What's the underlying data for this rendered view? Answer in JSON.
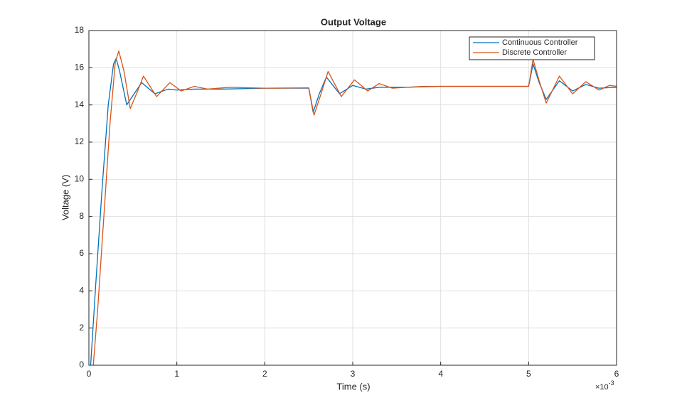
{
  "chart_data": {
    "type": "line",
    "title": "Output Voltage",
    "x_label": "Time (s)",
    "y_label": "Voltage (V)",
    "x_exponent_base": "×10",
    "x_exponent": "-3",
    "xlim": [
      0,
      6
    ],
    "xticks": [
      0,
      1,
      2,
      3,
      4,
      5,
      6
    ],
    "ylim": [
      0,
      18
    ],
    "yticks": [
      0,
      2,
      4,
      6,
      8,
      10,
      12,
      14,
      16,
      18
    ],
    "grid": true,
    "legend": "top-right",
    "series": [
      {
        "name": "Continuous Controller",
        "color": "#0072BD",
        "x": [
          0.02,
          0.08,
          0.15,
          0.22,
          0.28,
          0.31,
          0.35,
          0.43,
          0.5,
          0.6,
          0.75,
          0.9,
          1.0,
          1.2,
          1.5,
          2.0,
          2.49,
          2.5,
          2.55,
          2.62,
          2.7,
          2.85,
          3.0,
          3.15,
          3.3,
          3.6,
          4.0,
          4.5,
          4.99,
          5.0,
          5.05,
          5.12,
          5.2,
          5.35,
          5.5,
          5.65,
          5.8,
          6.0
        ],
        "values": [
          0,
          4.5,
          9.5,
          14,
          16.2,
          16.5,
          15.8,
          14.0,
          14.5,
          15.2,
          14.6,
          14.85,
          14.8,
          14.85,
          14.85,
          14.9,
          14.9,
          14.9,
          13.6,
          14.6,
          15.5,
          14.6,
          15.05,
          14.85,
          14.95,
          14.95,
          15,
          15,
          15,
          15,
          16.2,
          15.2,
          14.3,
          15.3,
          14.75,
          15.1,
          14.9,
          14.95
        ]
      },
      {
        "name": "Discrete Controller",
        "color": "#D95319",
        "x": [
          0.05,
          0.1,
          0.17,
          0.24,
          0.3,
          0.34,
          0.4,
          0.47,
          0.55,
          0.62,
          0.77,
          0.92,
          1.05,
          1.2,
          1.35,
          1.6,
          2.0,
          2.49,
          2.5,
          2.56,
          2.64,
          2.72,
          2.87,
          3.02,
          3.17,
          3.3,
          3.45,
          3.8,
          4.5,
          4.99,
          5.0,
          5.05,
          5.12,
          5.2,
          5.35,
          5.5,
          5.65,
          5.8,
          5.92,
          6.0
        ],
        "values": [
          0,
          3,
          8,
          13,
          16.3,
          16.9,
          15.8,
          13.8,
          14.7,
          15.55,
          14.45,
          15.2,
          14.75,
          15.0,
          14.85,
          14.95,
          14.9,
          14.92,
          14.92,
          13.45,
          14.6,
          15.8,
          14.45,
          15.35,
          14.75,
          15.15,
          14.9,
          15,
          15,
          15,
          15,
          16.45,
          15.3,
          14.1,
          15.55,
          14.6,
          15.25,
          14.8,
          15.05,
          15.0
        ]
      }
    ]
  }
}
